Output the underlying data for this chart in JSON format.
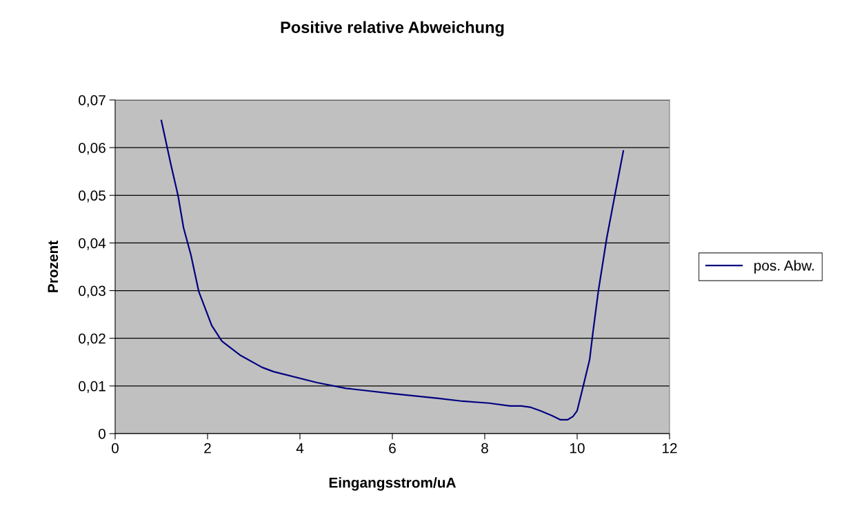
{
  "chart_data": {
    "type": "line",
    "title": "Positive relative Abweichung",
    "xlabel": "Eingangsstrom/uA",
    "ylabel": "Prozent",
    "xlim": [
      0,
      12
    ],
    "xticks": [
      0,
      2,
      4,
      6,
      8,
      10,
      12
    ],
    "ylim": [
      0,
      0.07
    ],
    "yticks": [
      {
        "value": 0,
        "label": "0"
      },
      {
        "value": 0.01,
        "label": "0,01"
      },
      {
        "value": 0.02,
        "label": "0,02"
      },
      {
        "value": 0.03,
        "label": "0,03"
      },
      {
        "value": 0.04,
        "label": "0,04"
      },
      {
        "value": 0.05,
        "label": "0,05"
      },
      {
        "value": 0.06,
        "label": "0,06"
      },
      {
        "value": 0.07,
        "label": "0,07"
      }
    ],
    "grid": "y",
    "legend": "right",
    "marker": "none",
    "line_style": "solid",
    "series": [
      {
        "name": "pos. Abw.",
        "color": "#000080",
        "x": [
          1.0,
          1.21,
          1.36,
          1.48,
          1.64,
          1.81,
          2.09,
          2.31,
          2.7,
          3.18,
          3.43,
          4.37,
          5.0,
          5.99,
          7.0,
          7.52,
          8.09,
          8.55,
          8.8,
          9.0,
          9.2,
          9.45,
          9.64,
          9.79,
          9.91,
          10.0,
          10.12,
          10.27,
          10.34,
          10.46,
          10.64,
          10.82,
          11.0
        ],
        "values": [
          0.0657,
          0.0563,
          0.05,
          0.0432,
          0.0375,
          0.0298,
          0.0227,
          0.0194,
          0.0165,
          0.0139,
          0.013,
          0.0107,
          0.0095,
          0.0084,
          0.0074,
          0.0068,
          0.0064,
          0.0058,
          0.0058,
          0.0055,
          0.0048,
          0.0038,
          0.0029,
          0.0029,
          0.0036,
          0.0048,
          0.0095,
          0.0155,
          0.0211,
          0.03,
          0.041,
          0.0502,
          0.0593
        ]
      }
    ]
  }
}
